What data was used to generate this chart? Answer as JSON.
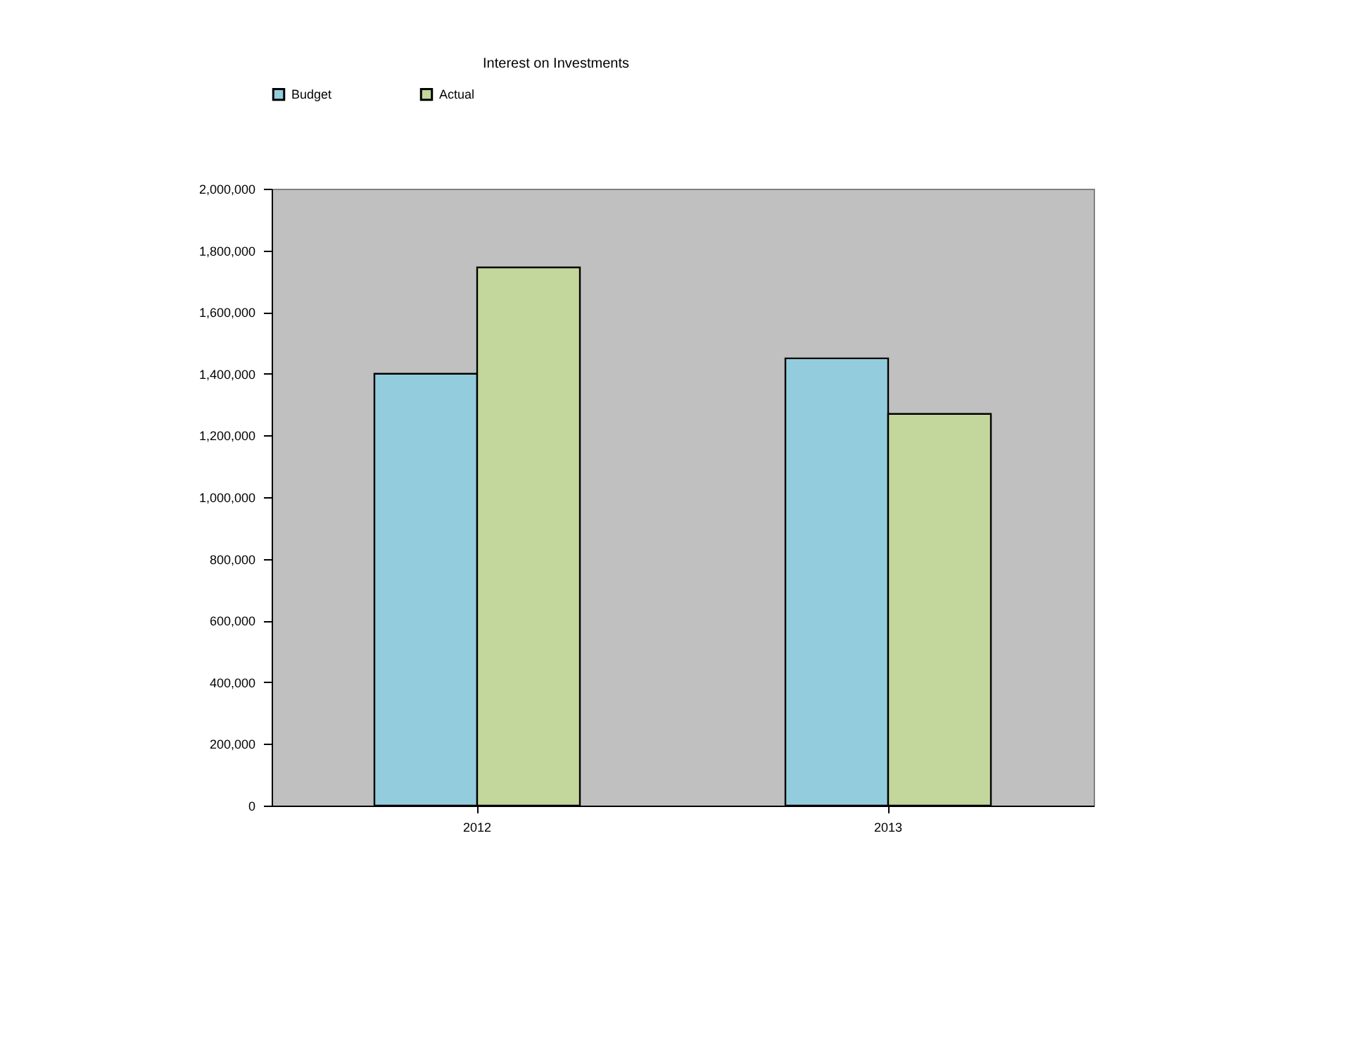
{
  "chart_data": {
    "type": "bar",
    "title": "Interest on Investments",
    "categories": [
      "2012",
      "2013"
    ],
    "series": [
      {
        "name": "Budget",
        "color": "#93cddd",
        "values": [
          1400000,
          1450000
        ]
      },
      {
        "name": "Actual",
        "color": "#c3d69b",
        "values": [
          1745000,
          1270000
        ]
      }
    ],
    "ylim": [
      0,
      2000000
    ],
    "yticks": [
      0,
      {
        "value": 200000,
        "label": "200,000"
      },
      {
        "value": 400000,
        "label": "400,000"
      },
      {
        "value": 600000,
        "label": "600,000"
      },
      {
        "value": 800000,
        "label": "800,000"
      },
      {
        "value": 1000000,
        "label": "1,000,000"
      },
      {
        "value": 1200000,
        "label": "1,200,000"
      },
      {
        "value": 1400000,
        "label": "1,400,000"
      },
      {
        "value": 1600000,
        "label": "1,600,000"
      },
      {
        "value": 1800000,
        "label": "1,800,000"
      },
      {
        "value": 2000000,
        "label": "2,000,000"
      }
    ],
    "grid": false,
    "legend": "top"
  }
}
